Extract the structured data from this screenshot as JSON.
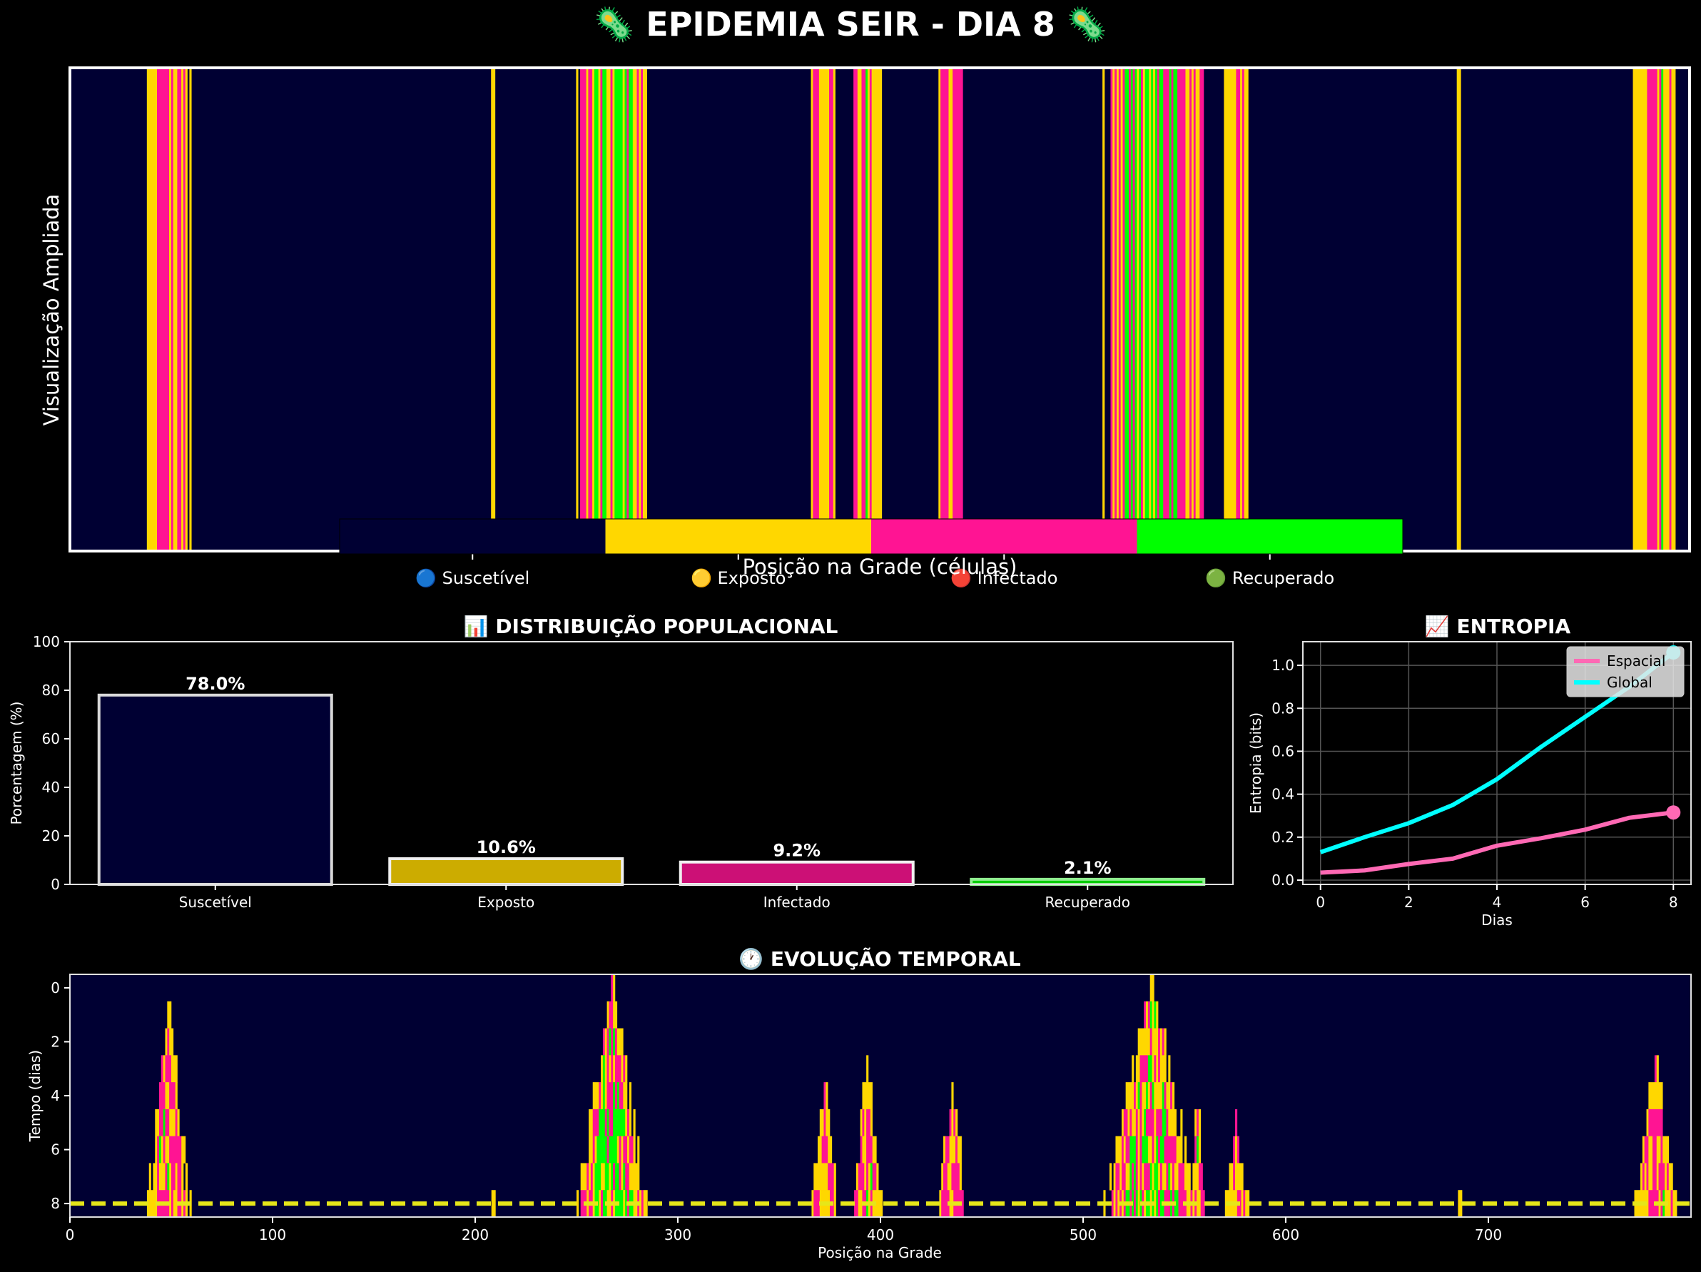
{
  "title": "🦠 EPIDEMIA SEIR - DIA 8 🦠",
  "colors": {
    "susceptible": "#000033",
    "exposed": "#FFD700",
    "infected": "#FF1493",
    "recovered": "#00FF00",
    "bg": "#000000",
    "entropy_spatial": "#FF69B4",
    "entropy_global": "#00FFFF",
    "current_day_line": "#FFFF00"
  },
  "states": [
    "Suscetível",
    "Exposto",
    "Infectado",
    "Recuperado"
  ],
  "grid": {
    "size": 800,
    "day": 8,
    "ylabel": "Visualização Ampliada",
    "xlabel": "Posição na Grade (células)",
    "legend": [
      "🔵 Suscetível",
      "🟡 Exposto",
      "🔴 Infectado",
      "🟢 Recuperado"
    ],
    "outbreaks": [
      {
        "center": 48,
        "spread": 10.5,
        "infected": 0.45,
        "recovered": 0.05,
        "onset": 0.5
      },
      {
        "center": 209,
        "spread": 0.6,
        "infected": 0.0,
        "recovered": 0.0,
        "onset": 7.5
      },
      {
        "center": 267,
        "spread": 16.5,
        "infected": 0.5,
        "recovered": 0.28,
        "onset": -0.5
      },
      {
        "center": 372,
        "spread": 6.0,
        "infected": 0.4,
        "recovered": 0.06,
        "onset": 3.5
      },
      {
        "center": 393,
        "spread": 6.5,
        "infected": 0.45,
        "recovered": 0.06,
        "onset": 2.6
      },
      {
        "center": 435,
        "spread": 7.0,
        "infected": 0.5,
        "recovered": 0.04,
        "onset": 3.5
      },
      {
        "center": 533,
        "spread": 22.5,
        "infected": 0.5,
        "recovered": 0.22,
        "onset": -0.5
      },
      {
        "center": 556,
        "spread": 3.5,
        "infected": 0.35,
        "recovered": 0.05,
        "onset": 4.5
      },
      {
        "center": 575,
        "spread": 5.5,
        "infected": 0.45,
        "recovered": 0.0,
        "onset": 4.5
      },
      {
        "center": 686,
        "spread": 0.6,
        "infected": 0.0,
        "recovered": 0.0,
        "onset": 7.5
      },
      {
        "center": 782,
        "spread": 9.5,
        "infected": 0.5,
        "recovered": 0.05,
        "onset": 2.5
      }
    ]
  },
  "distribution": {
    "title": "📊 DISTRIBUIÇÃO POPULACIONAL",
    "ylabel": "Porcentagem (%)",
    "ylim": [
      0,
      100
    ],
    "yticks": [
      0,
      20,
      40,
      60,
      80,
      100
    ]
  },
  "entropy": {
    "title": "📈 ENTROPIA",
    "xlabel": "Dias",
    "ylabel": "Entropia (bits)",
    "xlim": [
      -0.4,
      8.4
    ],
    "ylim": [
      -0.02,
      1.11
    ],
    "xticks": [
      0,
      2,
      4,
      6,
      8
    ],
    "yticks": [
      0.0,
      0.2,
      0.4,
      0.6,
      0.8,
      1.0
    ],
    "legend_placement": "top-right",
    "grid": true
  },
  "temporal": {
    "title": "🕐 EVOLUÇÃO TEMPORAL",
    "xlabel": "Posição na Grade",
    "ylabel": "Tempo (dias)",
    "xticks": [
      0,
      100,
      200,
      300,
      400,
      500,
      600,
      700
    ],
    "yticks": [
      0,
      2,
      4,
      6,
      8
    ],
    "current_day": 8
  },
  "chart_data": [
    {
      "type": "bar",
      "title": "📊 DISTRIBUIÇÃO POPULACIONAL",
      "xlabel": "",
      "ylabel": "Porcentagem (%)",
      "categories": [
        "Suscetível",
        "Exposto",
        "Infectado",
        "Recuperado"
      ],
      "values": [
        78.0,
        10.6,
        9.2,
        2.1
      ],
      "labels": [
        "78.0%",
        "10.6%",
        "9.2%",
        "2.1%"
      ],
      "ylim": [
        0,
        100
      ]
    },
    {
      "type": "line",
      "title": "📈 ENTROPIA",
      "xlabel": "Dias",
      "ylabel": "Entropia (bits)",
      "x": [
        0,
        1,
        2,
        3,
        4,
        5,
        6,
        7,
        8
      ],
      "series": [
        {
          "name": "Espacial",
          "values": [
            0.035,
            0.045,
            0.075,
            0.1,
            0.16,
            0.195,
            0.235,
            0.29,
            0.315
          ]
        },
        {
          "name": "Global",
          "values": [
            0.13,
            0.2,
            0.265,
            0.35,
            0.47,
            0.62,
            0.76,
            0.9,
            1.06
          ]
        }
      ],
      "xlim": [
        -0.4,
        8.4
      ],
      "ylim": [
        -0.02,
        1.11
      ],
      "grid": true,
      "legend": "top-right"
    },
    {
      "type": "heatmap",
      "title": "🕐 EVOLUÇÃO TEMPORAL",
      "xlabel": "Posição na Grade",
      "ylabel": "Tempo (dias)",
      "x_range": [
        0,
        800
      ],
      "y_range": [
        0,
        8
      ],
      "rows": 9,
      "columns": 800
    }
  ]
}
